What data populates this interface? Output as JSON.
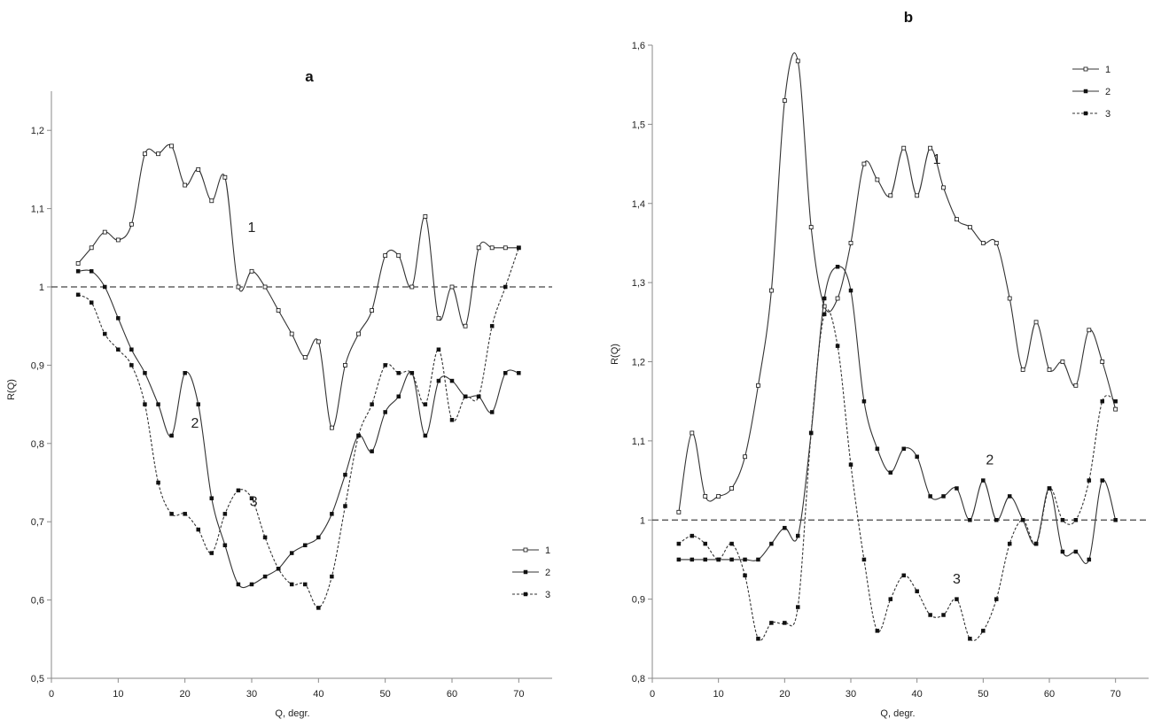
{
  "chart_data": [
    {
      "type": "line",
      "title": "a",
      "xlabel": "Q, degr.",
      "ylabel": "R(Q)",
      "xlim": [
        0,
        75
      ],
      "ylim": [
        0.5,
        1.25
      ],
      "xticks": [
        0,
        10,
        20,
        30,
        40,
        50,
        60,
        70
      ],
      "xtick_labels": [
        "0",
        "10",
        "20",
        "30",
        "40",
        "50",
        "60",
        "70"
      ],
      "yticks": [
        0.5,
        0.6,
        0.7,
        0.8,
        0.9,
        1.0,
        1.1,
        1.2
      ],
      "ytick_labels": [
        "0,5",
        "0,6",
        "0,7",
        "0,8",
        "0,9",
        "1",
        "1,1",
        "1,2"
      ],
      "reference_line": 1.0,
      "grid": false,
      "legend_position": "bottom-right",
      "series": [
        {
          "name": "1",
          "style": "solid",
          "marker": "open-square",
          "label_pos": [
            30,
            1.07
          ],
          "x": [
            4,
            6,
            8,
            10,
            12,
            14,
            16,
            18,
            20,
            22,
            24,
            26,
            28,
            30,
            32,
            34,
            36,
            38,
            40,
            42,
            44,
            46,
            48,
            50,
            52,
            54,
            56,
            58,
            60,
            62,
            64,
            66,
            68,
            70
          ],
          "y": [
            1.03,
            1.05,
            1.07,
            1.06,
            1.08,
            1.17,
            1.17,
            1.18,
            1.13,
            1.15,
            1.11,
            1.14,
            1.0,
            1.02,
            1.0,
            0.97,
            0.94,
            0.91,
            0.93,
            0.82,
            0.9,
            0.94,
            0.97,
            1.04,
            1.04,
            1.0,
            1.09,
            0.96,
            1.0,
            0.95,
            1.05,
            1.05,
            1.05,
            1.05
          ]
        },
        {
          "name": "2",
          "style": "solid",
          "marker": "filled-square",
          "label_pos": [
            21.5,
            0.82
          ],
          "x": [
            4,
            6,
            8,
            10,
            12,
            14,
            16,
            18,
            20,
            22,
            24,
            26,
            28,
            30,
            32,
            34,
            36,
            38,
            40,
            42,
            44,
            46,
            48,
            50,
            52,
            54,
            56,
            58,
            60,
            62,
            64,
            66,
            68,
            70
          ],
          "y": [
            1.02,
            1.02,
            1.0,
            0.96,
            0.92,
            0.89,
            0.85,
            0.81,
            0.89,
            0.85,
            0.73,
            0.67,
            0.62,
            0.62,
            0.63,
            0.64,
            0.66,
            0.67,
            0.68,
            0.71,
            0.76,
            0.81,
            0.79,
            0.84,
            0.86,
            0.89,
            0.81,
            0.88,
            0.88,
            0.86,
            0.86,
            0.84,
            0.89,
            0.89
          ]
        },
        {
          "name": "3",
          "style": "dashed",
          "marker": "filled-square",
          "label_pos": [
            30.3,
            0.72
          ],
          "x": [
            4,
            6,
            8,
            10,
            12,
            14,
            16,
            18,
            20,
            22,
            24,
            26,
            28,
            30,
            32,
            34,
            36,
            38,
            40,
            42,
            44,
            46,
            48,
            50,
            52,
            54,
            56,
            58,
            60,
            62,
            64,
            66,
            68,
            70
          ],
          "y": [
            0.99,
            0.98,
            0.94,
            0.92,
            0.9,
            0.85,
            0.75,
            0.71,
            0.71,
            0.69,
            0.66,
            0.71,
            0.74,
            0.73,
            0.68,
            0.64,
            0.62,
            0.62,
            0.59,
            0.63,
            0.72,
            0.81,
            0.85,
            0.9,
            0.89,
            0.89,
            0.85,
            0.92,
            0.83,
            0.86,
            0.86,
            0.95,
            1.0,
            1.05
          ]
        }
      ]
    },
    {
      "type": "line",
      "title": "b",
      "xlabel": "Q, degr.",
      "ylabel": "R(Q)",
      "xlim": [
        0,
        75
      ],
      "ylim": [
        0.8,
        1.6
      ],
      "xticks": [
        0,
        10,
        20,
        30,
        40,
        50,
        60,
        70
      ],
      "xtick_labels": [
        "0",
        "10",
        "20",
        "30",
        "40",
        "50",
        "60",
        "70"
      ],
      "yticks": [
        0.8,
        0.9,
        1.0,
        1.1,
        1.2,
        1.3,
        1.4,
        1.5,
        1.6
      ],
      "ytick_labels": [
        "0,8",
        "0,9",
        "1",
        "1,1",
        "1,2",
        "1,3",
        "1,4",
        "1,5",
        "1,6"
      ],
      "reference_line": 1.0,
      "grid": false,
      "legend_position": "top-right",
      "series": [
        {
          "name": "1",
          "style": "solid",
          "marker": "open-square",
          "label_pos": [
            43,
            1.45
          ],
          "x": [
            4,
            6,
            8,
            10,
            12,
            14,
            16,
            18,
            20,
            22,
            24,
            26,
            28,
            30,
            32,
            34,
            36,
            38,
            40,
            42,
            44,
            46,
            48,
            50,
            52,
            54,
            56,
            58,
            60,
            62,
            64,
            66,
            68,
            70
          ],
          "y": [
            1.01,
            1.11,
            1.03,
            1.03,
            1.04,
            1.08,
            1.17,
            1.29,
            1.53,
            1.58,
            1.37,
            1.27,
            1.28,
            1.35,
            1.45,
            1.43,
            1.41,
            1.47,
            1.41,
            1.47,
            1.42,
            1.38,
            1.37,
            1.35,
            1.35,
            1.28,
            1.19,
            1.25,
            1.19,
            1.2,
            1.17,
            1.24,
            1.2,
            1.14
          ]
        },
        {
          "name": "2",
          "style": "solid",
          "marker": "filled-square",
          "label_pos": [
            51,
            1.07
          ],
          "x": [
            4,
            6,
            8,
            10,
            12,
            14,
            16,
            18,
            20,
            22,
            24,
            26,
            28,
            30,
            32,
            34,
            36,
            38,
            40,
            42,
            44,
            46,
            48,
            50,
            52,
            54,
            56,
            58,
            60,
            62,
            64,
            66,
            68,
            70
          ],
          "y": [
            0.95,
            0.95,
            0.95,
            0.95,
            0.95,
            0.95,
            0.95,
            0.97,
            0.99,
            0.98,
            1.11,
            1.28,
            1.32,
            1.29,
            1.15,
            1.09,
            1.06,
            1.09,
            1.08,
            1.03,
            1.03,
            1.04,
            1.0,
            1.05,
            1.0,
            1.03,
            1.0,
            0.97,
            1.04,
            0.96,
            0.96,
            0.95,
            1.05,
            1.0
          ]
        },
        {
          "name": "3",
          "style": "dashed",
          "marker": "filled-square",
          "label_pos": [
            46,
            0.92
          ],
          "x": [
            4,
            6,
            8,
            10,
            12,
            14,
            16,
            18,
            20,
            22,
            24,
            26,
            28,
            30,
            32,
            34,
            36,
            38,
            40,
            42,
            44,
            46,
            48,
            50,
            52,
            54,
            56,
            58,
            60,
            62,
            64,
            66,
            68,
            70
          ],
          "y": [
            0.97,
            0.98,
            0.97,
            0.95,
            0.97,
            0.93,
            0.85,
            0.87,
            0.87,
            0.89,
            1.11,
            1.26,
            1.22,
            1.07,
            0.95,
            0.86,
            0.9,
            0.93,
            0.91,
            0.88,
            0.88,
            0.9,
            0.85,
            0.86,
            0.9,
            0.97,
            1.0,
            0.97,
            1.04,
            1.0,
            1.0,
            1.05,
            1.15,
            1.15
          ]
        }
      ]
    }
  ]
}
